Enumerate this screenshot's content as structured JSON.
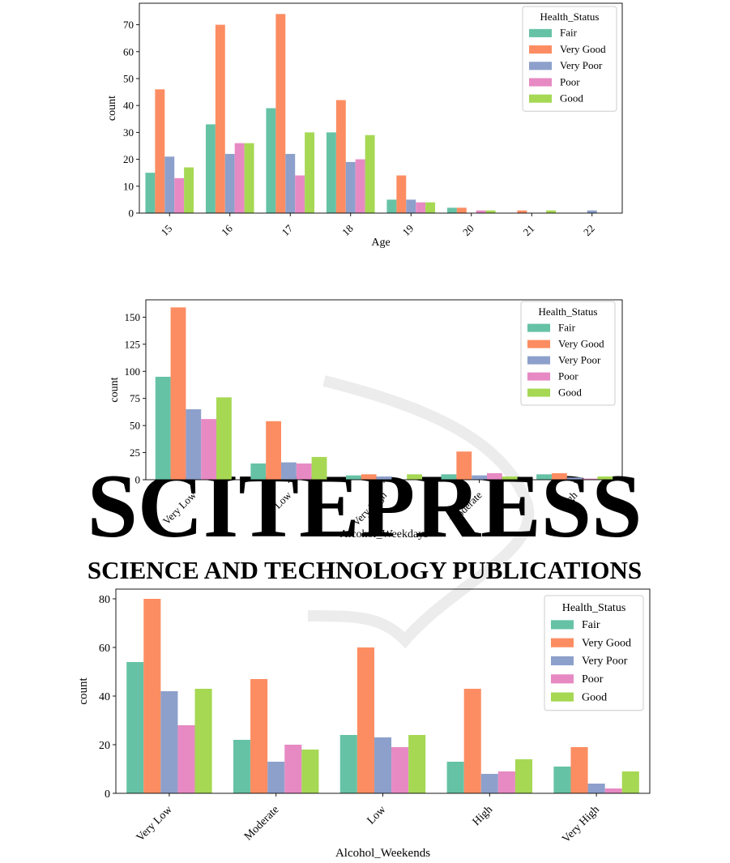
{
  "watermark": {
    "main": "SCITEPRESS",
    "sub": "SCIENCE AND TECHNOLOGY PUBLICATIONS"
  },
  "colors": {
    "Fair": "#66c2a5",
    "Very Good": "#fc8d62",
    "Very Poor": "#8da0cb",
    "Poor": "#e78ac3",
    "Good": "#a6d854"
  },
  "chart_data": [
    {
      "type": "bar",
      "xlabel": "Age",
      "ylabel": "count",
      "categories": [
        "15",
        "16",
        "17",
        "18",
        "19",
        "20",
        "21",
        "22"
      ],
      "ylim": [
        0,
        78
      ],
      "yticks": [
        0,
        10,
        20,
        30,
        40,
        50,
        60,
        70
      ],
      "tick_rotation": 45,
      "legend_title": "Health_Status",
      "legend_position": "top-right",
      "series": [
        {
          "name": "Fair",
          "values": [
            15,
            33,
            39,
            30,
            5,
            2,
            0,
            0
          ]
        },
        {
          "name": "Very Good",
          "values": [
            46,
            70,
            74,
            42,
            14,
            2,
            1,
            0
          ]
        },
        {
          "name": "Very Poor",
          "values": [
            21,
            22,
            22,
            19,
            5,
            0,
            0,
            1
          ]
        },
        {
          "name": "Poor",
          "values": [
            13,
            26,
            14,
            20,
            4,
            1,
            0,
            0
          ]
        },
        {
          "name": "Good",
          "values": [
            17,
            26,
            30,
            29,
            4,
            1,
            1,
            0
          ]
        }
      ]
    },
    {
      "type": "bar",
      "xlabel": "Alcohol_Weekdays",
      "ylabel": "count",
      "categories": [
        "Very Low",
        "Low",
        "Very High",
        "Moderate",
        "High"
      ],
      "ylim": [
        0,
        166
      ],
      "yticks": [
        0,
        25,
        50,
        75,
        100,
        125,
        150
      ],
      "tick_rotation": 45,
      "legend_title": "Health_Status",
      "legend_position": "top-right",
      "series": [
        {
          "name": "Fair",
          "values": [
            95,
            15,
            4,
            5,
            5
          ]
        },
        {
          "name": "Very Good",
          "values": [
            159,
            54,
            5,
            26,
            6
          ]
        },
        {
          "name": "Very Poor",
          "values": [
            65,
            16,
            3,
            4,
            2
          ]
        },
        {
          "name": "Poor",
          "values": [
            56,
            15,
            0,
            6,
            1
          ]
        },
        {
          "name": "Good",
          "values": [
            76,
            21,
            5,
            3,
            3
          ]
        }
      ]
    },
    {
      "type": "bar",
      "xlabel": "Alcohol_Weekends",
      "ylabel": "count",
      "categories": [
        "Very Low",
        "Moderate",
        "Low",
        "High",
        "Very High"
      ],
      "ylim": [
        0,
        84
      ],
      "yticks": [
        0,
        20,
        40,
        60,
        80
      ],
      "tick_rotation": 45,
      "legend_title": "Health_Status",
      "legend_position": "top-right",
      "series": [
        {
          "name": "Fair",
          "values": [
            54,
            22,
            24,
            13,
            11
          ]
        },
        {
          "name": "Very Good",
          "values": [
            80,
            47,
            60,
            43,
            19
          ]
        },
        {
          "name": "Very Poor",
          "values": [
            42,
            13,
            23,
            8,
            4
          ]
        },
        {
          "name": "Poor",
          "values": [
            28,
            20,
            19,
            9,
            2
          ]
        },
        {
          "name": "Good",
          "values": [
            43,
            18,
            24,
            14,
            9
          ]
        }
      ]
    }
  ]
}
